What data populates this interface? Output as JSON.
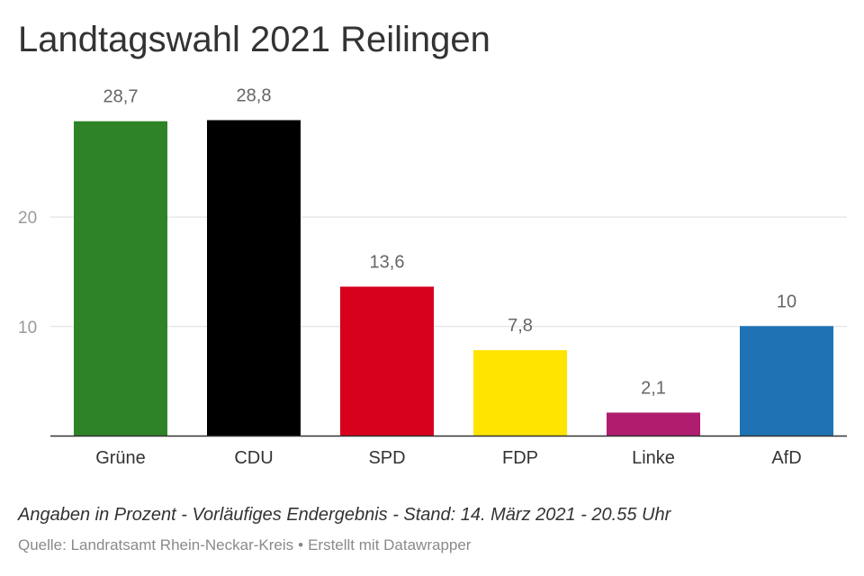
{
  "title": "Landtagswahl 2021 Reilingen",
  "note": "Angaben in Prozent - Vorläufiges Endergebnis - Stand: 14. März 2021 - 20.55 Uhr",
  "source": {
    "text": "Quelle: Landratsamt Rhein-Neckar-Kreis",
    "separator": "•",
    "credit": "Erstellt mit Datawrapper"
  },
  "chart_data": {
    "type": "bar",
    "categories": [
      "Grüne",
      "CDU",
      "SPD",
      "FDP",
      "Linke",
      "AfD"
    ],
    "values": [
      28.7,
      28.8,
      13.6,
      7.8,
      2.1,
      10
    ],
    "value_labels": [
      "28,7",
      "28,8",
      "13,6",
      "7,8",
      "2,1",
      "10"
    ],
    "colors": [
      "#2e8327",
      "#000000",
      "#d7001d",
      "#ffe400",
      "#b01d6e",
      "#1f73b4"
    ],
    "yticks": [
      10,
      20
    ],
    "ylim": [
      0,
      30
    ],
    "grid": true
  }
}
